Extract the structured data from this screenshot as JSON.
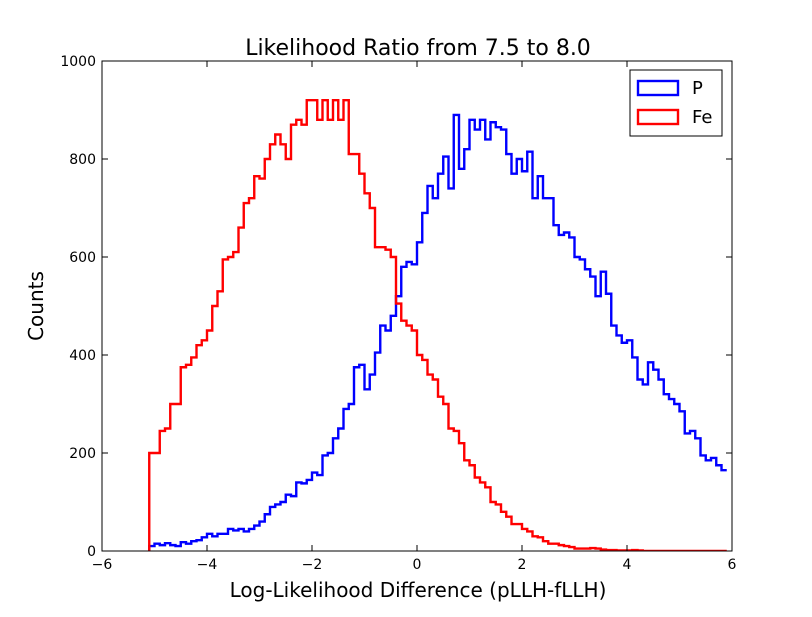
{
  "chart_data": {
    "type": "histogram-step",
    "title": "Likelihood Ratio from 7.5 to 8.0",
    "xlabel": "Log-Likelihood Difference (pLLH-fLLH)",
    "ylabel": "Counts",
    "xlim": [
      -6,
      6
    ],
    "ylim": [
      0,
      1000
    ],
    "xticks": [
      -6,
      -4,
      -2,
      0,
      2,
      4,
      6
    ],
    "xtick_labels": [
      "−6",
      "−4",
      "−2",
      "0",
      "2",
      "4",
      "6"
    ],
    "yticks": [
      0,
      200,
      400,
      600,
      800,
      1000
    ],
    "ytick_labels": [
      "0",
      "200",
      "400",
      "600",
      "800",
      "1000"
    ],
    "grid": false,
    "legend_position": "top-right",
    "bin_start": -5.1,
    "bin_width": 0.1,
    "series": [
      {
        "name": "P",
        "color": "#0000ff",
        "values": [
          10,
          15,
          12,
          16,
          12,
          10,
          18,
          15,
          20,
          22,
          28,
          35,
          30,
          35,
          35,
          45,
          42,
          45,
          40,
          45,
          52,
          60,
          75,
          90,
          95,
          100,
          115,
          112,
          140,
          138,
          145,
          160,
          155,
          195,
          200,
          230,
          250,
          290,
          300,
          375,
          380,
          330,
          360,
          405,
          460,
          450,
          480,
          520,
          580,
          590,
          585,
          630,
          690,
          745,
          720,
          770,
          805,
          740,
          890,
          780,
          820,
          880,
          860,
          880,
          840,
          875,
          865,
          860,
          810,
          770,
          800,
          775,
          815,
          720,
          765,
          720,
          720,
          665,
          645,
          650,
          640,
          600,
          595,
          575,
          560,
          520,
          570,
          525,
          460,
          440,
          425,
          430,
          395,
          350,
          340,
          385,
          370,
          350,
          320,
          310,
          300,
          285,
          240,
          245,
          230,
          195,
          185,
          190,
          175,
          165
        ]
      },
      {
        "name": "Fe",
        "color": "#ff0000",
        "values": [
          200,
          200,
          245,
          250,
          300,
          300,
          375,
          380,
          395,
          420,
          430,
          450,
          500,
          530,
          595,
          600,
          610,
          660,
          710,
          720,
          765,
          760,
          800,
          830,
          850,
          830,
          800,
          870,
          880,
          870,
          920,
          920,
          880,
          920,
          880,
          920,
          880,
          920,
          810,
          810,
          770,
          730,
          700,
          620,
          620,
          615,
          600,
          505,
          470,
          460,
          450,
          400,
          390,
          360,
          350,
          315,
          300,
          250,
          245,
          220,
          185,
          175,
          150,
          140,
          130,
          100,
          95,
          80,
          70,
          55,
          55,
          45,
          40,
          30,
          28,
          20,
          15,
          15,
          12,
          10,
          8,
          5,
          5,
          5,
          6,
          5,
          3,
          2,
          2,
          1,
          1,
          1,
          2,
          1,
          0,
          0,
          0,
          0,
          0,
          0,
          0,
          0,
          0,
          0,
          0,
          0,
          0,
          0,
          0,
          0
        ]
      }
    ]
  }
}
